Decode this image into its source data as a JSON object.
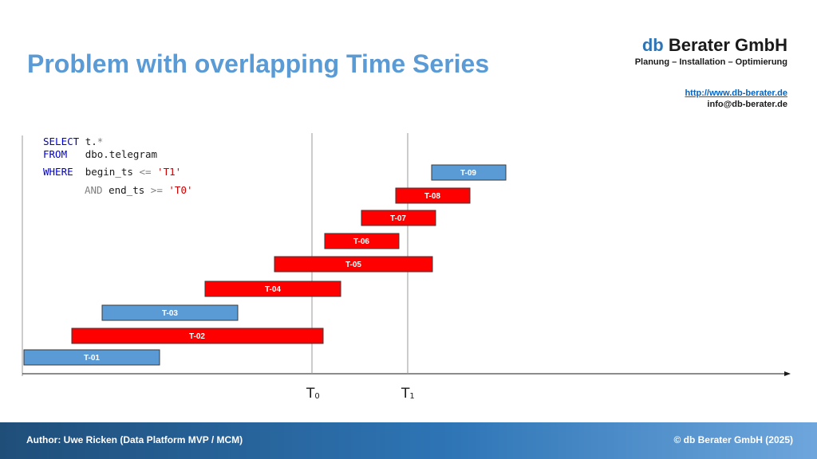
{
  "slide": {
    "title": "Problem with overlapping Time Series"
  },
  "brand": {
    "name_prefix": "db",
    "name_suffix": " Berater GmbH",
    "tagline": "Planung – Installation – Optimierung",
    "url": "http://www.db-berater.de",
    "email": "info@db-berater.de"
  },
  "sql": {
    "select_kw": "SELECT",
    "select_expr": "t.",
    "select_star": "*",
    "from_kw": "FROM",
    "from_table": "dbo.telegram",
    "where_kw": "WHERE",
    "where_col": "begin_ts",
    "where_op": "<=",
    "where_val": "'T1'",
    "and_kw": "AND",
    "and_col": "end_ts",
    "and_op": ">=",
    "and_val": "'T0'"
  },
  "diagram": {
    "markers": [
      {
        "label": "T",
        "sub": "0"
      },
      {
        "label": "T",
        "sub": "1"
      }
    ],
    "colors": {
      "matching": "#ff0000",
      "non_matching": "#5b9bd5",
      "border": "#3a3a3a"
    },
    "series": [
      {
        "label": "T-01",
        "match": false
      },
      {
        "label": "T-02",
        "match": true
      },
      {
        "label": "T-03",
        "match": false
      },
      {
        "label": "T-04",
        "match": true
      },
      {
        "label": "T-05",
        "match": true
      },
      {
        "label": "T-06",
        "match": true
      },
      {
        "label": "T-07",
        "match": true
      },
      {
        "label": "T-08",
        "match": true
      },
      {
        "label": "T-09",
        "match": false
      }
    ]
  },
  "footer": {
    "author": "Author: Uwe Ricken (Data Platform MVP / MCM)",
    "copyright": "© db Berater GmbH (2025)"
  }
}
